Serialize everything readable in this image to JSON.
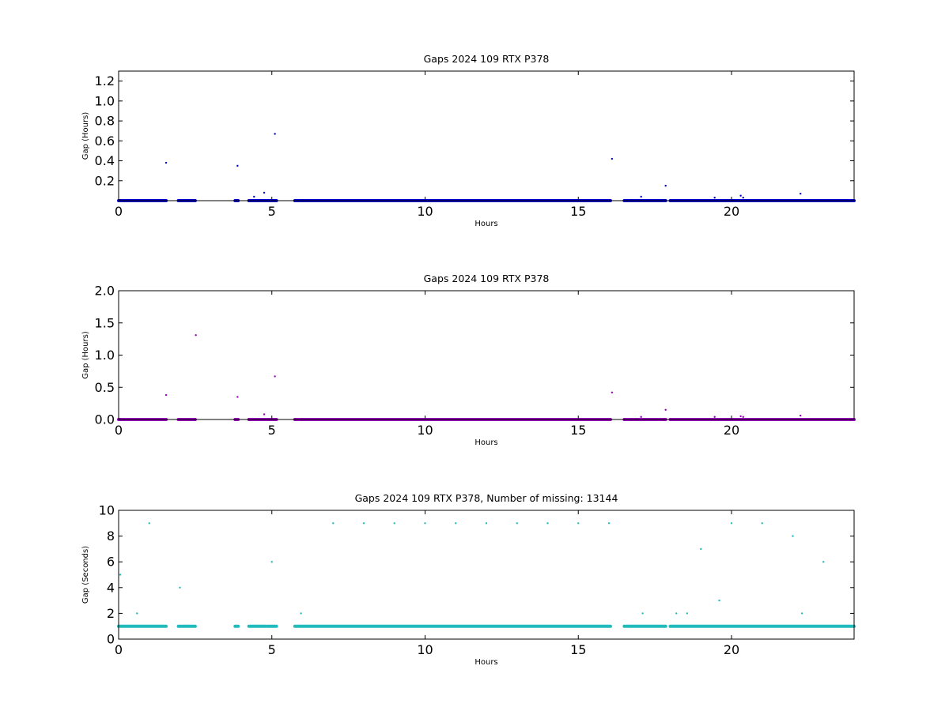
{
  "chart_data": [
    {
      "type": "scatter",
      "title": "Gaps 2024 109 RTX  P378",
      "xlabel": "Hours",
      "ylabel": "Gap (Hours)",
      "xlim": [
        0,
        24
      ],
      "ylim": [
        0,
        1.3
      ],
      "xticks": [
        "0",
        "5",
        "10",
        "15",
        "20"
      ],
      "xtick_values": [
        0,
        5,
        10,
        15,
        20
      ],
      "yticks": [
        "0.2",
        "0.4",
        "0.6",
        "0.8",
        "1.0",
        "1.2"
      ],
      "ytick_values": [
        0.2,
        0.4,
        0.6,
        0.8,
        1.0,
        1.2
      ],
      "grid": false,
      "series": [
        {
          "color": "#0000cc",
          "baseline_value": 0.0003,
          "baseline_ranges": [
            [
              0,
              1.55
            ],
            [
              1.95,
              2.5
            ],
            [
              3.8,
              3.9
            ],
            [
              4.25,
              4.8
            ],
            [
              4.85,
              5.15
            ],
            [
              5.75,
              16.05
            ],
            [
              16.5,
              17.85
            ],
            [
              18.0,
              24.0
            ]
          ],
          "points": [
            [
              1.55,
              0.38
            ],
            [
              3.88,
              0.35
            ],
            [
              4.42,
              0.04
            ],
            [
              4.75,
              0.08
            ],
            [
              5.1,
              0.67
            ],
            [
              16.1,
              0.42
            ],
            [
              17.05,
              0.04
            ],
            [
              17.85,
              0.15
            ],
            [
              19.45,
              0.03
            ],
            [
              20.3,
              0.05
            ],
            [
              20.38,
              0.03
            ],
            [
              22.25,
              0.07
            ]
          ]
        }
      ]
    },
    {
      "type": "scatter",
      "title": "Gaps 2024 109 RTX  P378",
      "xlabel": "Hours",
      "ylabel": "Gap (Hours)",
      "xlim": [
        0,
        24
      ],
      "ylim": [
        0,
        2.0
      ],
      "xticks": [
        "0",
        "5",
        "10",
        "15",
        "20"
      ],
      "xtick_values": [
        0,
        5,
        10,
        15,
        20
      ],
      "yticks": [
        "0.0",
        "0.5",
        "1.0",
        "1.5",
        "2.0"
      ],
      "ytick_values": [
        0,
        0.5,
        1.0,
        1.5,
        2.0
      ],
      "grid": false,
      "series": [
        {
          "color": "#9900bb",
          "baseline_value": 0.0003,
          "baseline_ranges": [
            [
              0,
              1.55
            ],
            [
              1.95,
              2.5
            ],
            [
              3.8,
              3.9
            ],
            [
              4.25,
              4.8
            ],
            [
              4.85,
              5.15
            ],
            [
              5.75,
              16.05
            ],
            [
              16.5,
              17.85
            ],
            [
              18.0,
              24.0
            ]
          ],
          "points": [
            [
              1.55,
              0.38
            ],
            [
              2.52,
              1.31
            ],
            [
              3.88,
              0.35
            ],
            [
              4.75,
              0.08
            ],
            [
              5.1,
              0.67
            ],
            [
              16.1,
              0.42
            ],
            [
              17.05,
              0.04
            ],
            [
              17.85,
              0.15
            ],
            [
              19.45,
              0.04
            ],
            [
              20.3,
              0.05
            ],
            [
              20.38,
              0.04
            ],
            [
              22.25,
              0.06
            ]
          ]
        }
      ]
    },
    {
      "type": "scatter",
      "title": "Gaps 2024 109 RTX  P378, Number of missing: 13144",
      "xlabel": "Hours",
      "ylabel": "Gap (Seconds)",
      "xlim": [
        0,
        24
      ],
      "ylim": [
        0,
        10
      ],
      "xticks": [
        "0",
        "5",
        "10",
        "15",
        "20"
      ],
      "xtick_values": [
        0,
        5,
        10,
        15,
        20
      ],
      "yticks": [
        "0",
        "2",
        "4",
        "6",
        "8",
        "10"
      ],
      "ytick_values": [
        0,
        2,
        4,
        6,
        8,
        10
      ],
      "grid": false,
      "series": [
        {
          "color": "#22bbbb",
          "baseline_value": 1,
          "baseline_ranges": [
            [
              0,
              1.55
            ],
            [
              1.95,
              2.5
            ],
            [
              3.8,
              3.9
            ],
            [
              4.25,
              4.8
            ],
            [
              4.85,
              5.15
            ],
            [
              5.75,
              16.05
            ],
            [
              16.5,
              17.85
            ],
            [
              18.0,
              24.0
            ]
          ],
          "points": [
            [
              0.05,
              5
            ],
            [
              0.6,
              2
            ],
            [
              1.0,
              9
            ],
            [
              2.0,
              4
            ],
            [
              5.0,
              6
            ],
            [
              5.95,
              2
            ],
            [
              7,
              9
            ],
            [
              8,
              9
            ],
            [
              9,
              9
            ],
            [
              10,
              9
            ],
            [
              11,
              9
            ],
            [
              12,
              9
            ],
            [
              13,
              9
            ],
            [
              14,
              9
            ],
            [
              15,
              9
            ],
            [
              16,
              9
            ],
            [
              17.1,
              2
            ],
            [
              18.2,
              2
            ],
            [
              18.55,
              2
            ],
            [
              19.0,
              7
            ],
            [
              19.6,
              3
            ],
            [
              20,
              9
            ],
            [
              21,
              9
            ],
            [
              22,
              8
            ],
            [
              22.3,
              2
            ],
            [
              23,
              6
            ]
          ]
        }
      ]
    }
  ]
}
